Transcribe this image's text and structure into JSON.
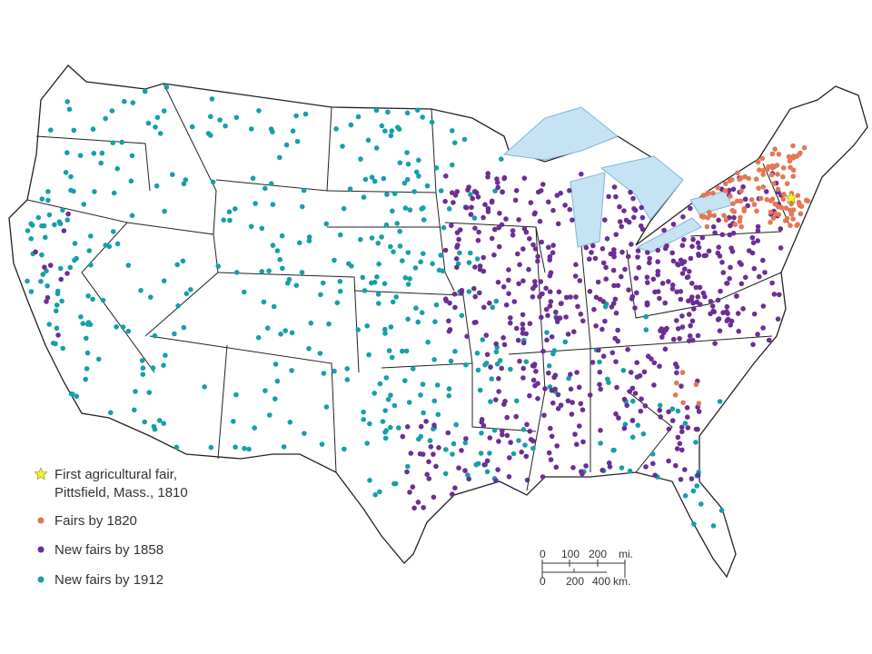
{
  "legend": {
    "items": [
      {
        "lines": [
          "First agricultural fair,",
          "Pittsfield, Mass., 1810"
        ]
      },
      {
        "lines": [
          "Fairs by 1820"
        ]
      },
      {
        "lines": [
          "New fairs by 1858"
        ]
      },
      {
        "lines": [
          "New fairs by 1912"
        ]
      }
    ]
  },
  "scale": {
    "miles": [
      "0",
      "100",
      "200",
      "mi."
    ],
    "km": [
      "0",
      "200",
      "400",
      "km."
    ]
  }
}
